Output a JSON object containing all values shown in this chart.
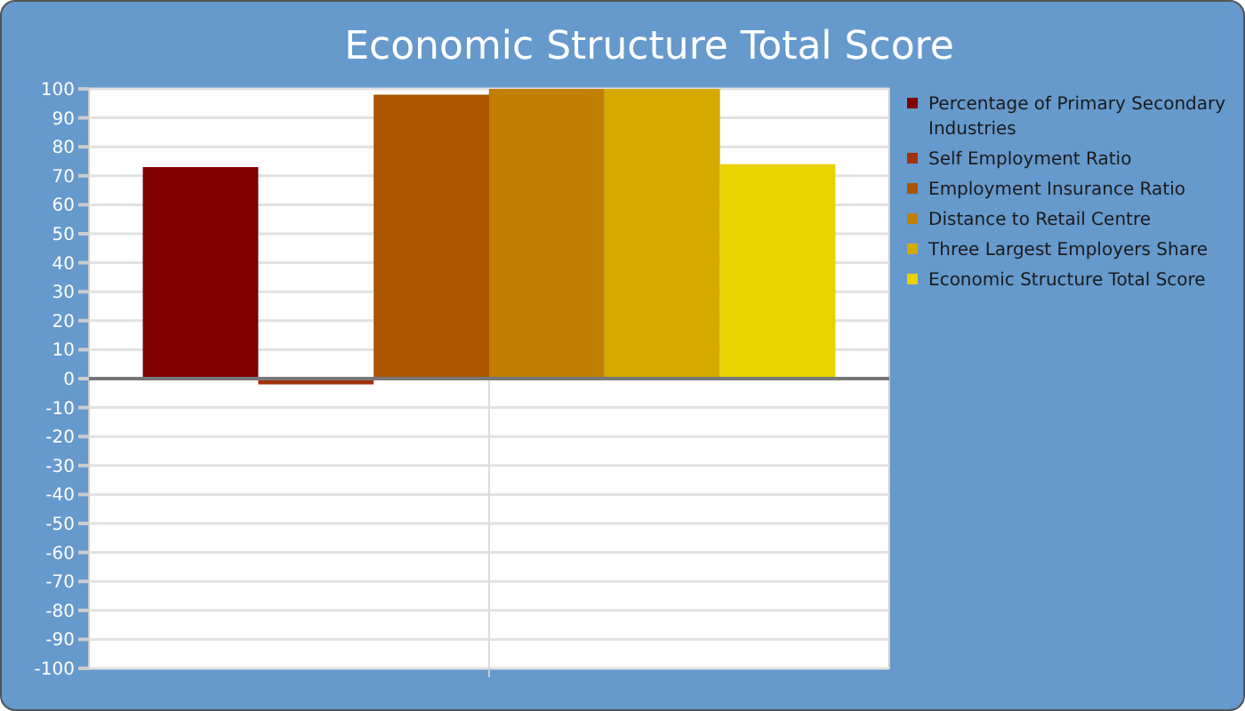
{
  "chart_data": {
    "type": "bar",
    "title": "Economic Structure Total Score",
    "categories": [
      null
    ],
    "series": [
      {
        "name": "Percentage of Primary Secondary Industries",
        "color": "#800000",
        "values": [
          73
        ]
      },
      {
        "name": "Self Employment Ratio",
        "color": "#a0320a",
        "values": [
          -2
        ]
      },
      {
        "name": "Employment Insurance Ratio",
        "color": "#ab5500",
        "values": [
          98
        ]
      },
      {
        "name": "Distance to Retail Centre",
        "color": "#c07f00",
        "values": [
          100
        ]
      },
      {
        "name": "Three Largest Employers Share",
        "color": "#d4aa00",
        "values": [
          100
        ]
      },
      {
        "name": "Economic Structure Total Score",
        "color": "#e8d200",
        "values": [
          74
        ]
      }
    ],
    "ylim": [
      -100,
      100
    ],
    "yticks": [
      -100,
      -90,
      -80,
      -70,
      -60,
      -50,
      -40,
      -30,
      -20,
      -10,
      0,
      10,
      20,
      30,
      40,
      50,
      60,
      70,
      80,
      90,
      100
    ],
    "grid": true,
    "legend": "right"
  }
}
